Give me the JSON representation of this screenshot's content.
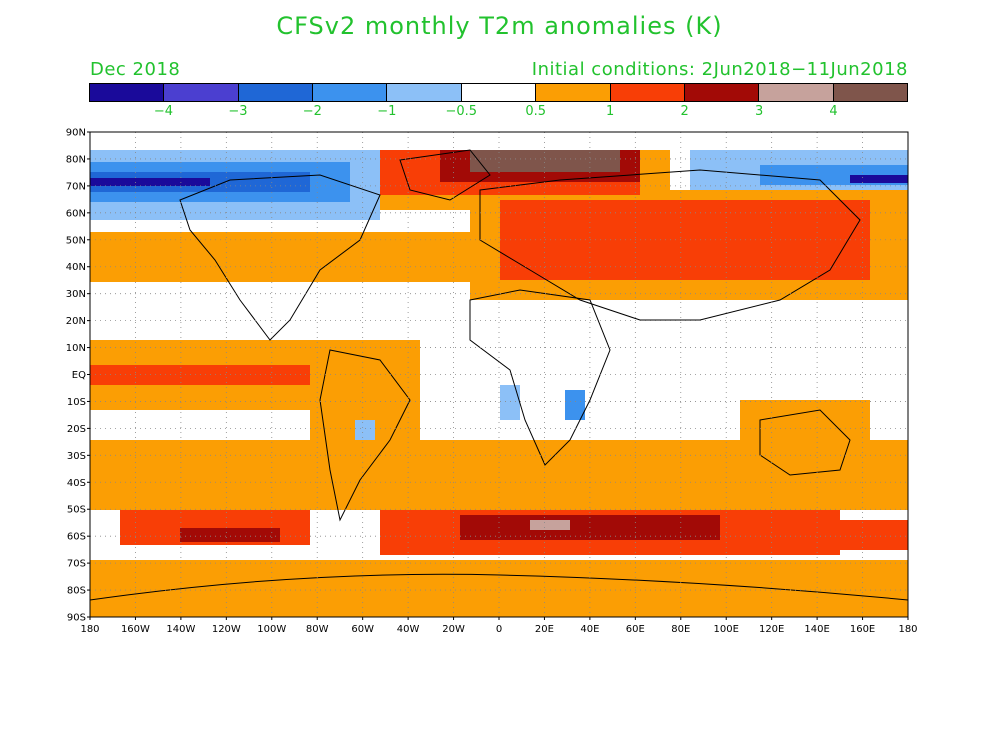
{
  "title": "CFSv2 monthly T2m anomalies (K)",
  "forecast_month": "Dec 2018",
  "initial_conditions": "Initial conditions: 2Jun2018−11Jun2018",
  "colorbar": {
    "colors": [
      "#1a0a9a",
      "#4b3fd0",
      "#1f67d6",
      "#3c92ee",
      "#8cc0f7",
      "#ffffff",
      "#fb9e04",
      "#f83e06",
      "#a20a06",
      "#c6a29c",
      "#7f554b"
    ],
    "labels": [
      "−4",
      "−3",
      "−2",
      "−1",
      "−0.5",
      "0.5",
      "1",
      "2",
      "3",
      "4"
    ]
  },
  "axes": {
    "lat_labels": [
      "90N",
      "80N",
      "70N",
      "60N",
      "50N",
      "40N",
      "30N",
      "20N",
      "10N",
      "EQ",
      "10S",
      "20S",
      "30S",
      "40S",
      "50S",
      "60S",
      "70S",
      "80S",
      "90S"
    ],
    "lon_labels": [
      "180",
      "160W",
      "140W",
      "120W",
      "100W",
      "80W",
      "60W",
      "40W",
      "20W",
      "0",
      "20E",
      "40E",
      "60E",
      "80E",
      "100E",
      "120E",
      "140E",
      "160E",
      "180"
    ]
  },
  "anomaly_regions": [
    {
      "name": "arctic-north-america-cold",
      "level": "-2"
    },
    {
      "name": "greenland-barents-warm",
      "level": "4"
    },
    {
      "name": "eurasia-warm",
      "level": "2"
    },
    {
      "name": "southern-ocean-warm",
      "level": "3"
    },
    {
      "name": "tropical-east-pacific-warm",
      "level": "2"
    },
    {
      "name": "central-africa-cool",
      "level": "-1"
    },
    {
      "name": "antarctica-warm",
      "level": "0.5"
    }
  ]
}
